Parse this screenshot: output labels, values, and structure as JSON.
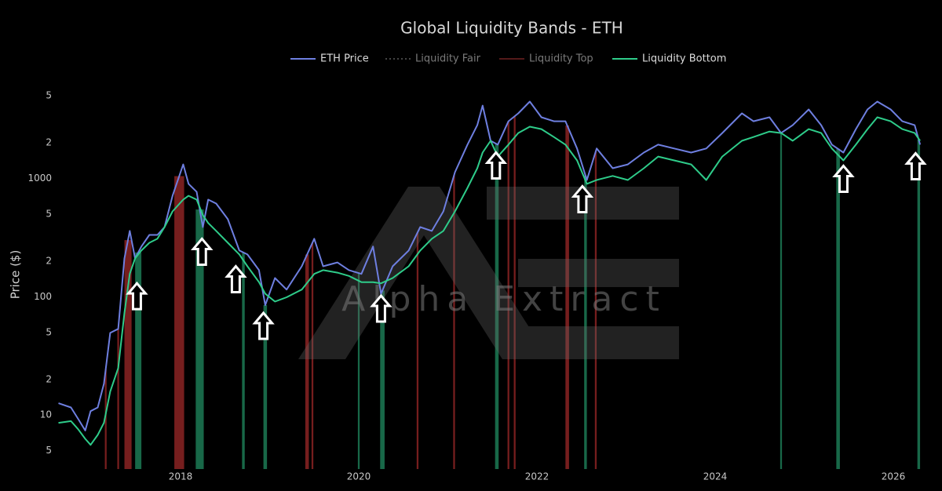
{
  "chart_data": {
    "type": "line",
    "title": "Global Liquidity Bands - ETH",
    "y_label": "Price ($)",
    "watermark": "Alpha Extract",
    "log_y": true,
    "xlim": [
      2016.59,
      2026.37
    ],
    "xticks": [
      2018,
      2020,
      2022,
      2024,
      2026
    ],
    "ylim": [
      3.5,
      7000
    ],
    "yticks": [
      {
        "value": 5000,
        "label": "5"
      },
      {
        "value": 2000,
        "label": "2"
      },
      1000,
      {
        "value": 500,
        "label": "5"
      },
      {
        "value": 200,
        "label": "2"
      },
      100,
      {
        "value": 50,
        "label": "5"
      },
      {
        "value": 20,
        "label": "2"
      },
      10,
      5
    ],
    "x": [
      2016.63,
      2016.77,
      2016.85,
      2016.93,
      2016.99,
      2017.07,
      2017.14,
      2017.21,
      2017.3,
      2017.37,
      2017.43,
      2017.49,
      2017.56,
      2017.65,
      2017.74,
      2017.82,
      2017.91,
      2018.03,
      2018.09,
      2018.18,
      2018.25,
      2018.31,
      2018.4,
      2018.53,
      2018.66,
      2018.75,
      2018.88,
      2018.95,
      2019.06,
      2019.19,
      2019.36,
      2019.5,
      2019.6,
      2019.76,
      2019.89,
      2020.03,
      2020.16,
      2020.25,
      2020.38,
      2020.56,
      2020.69,
      2020.82,
      2020.95,
      2021.08,
      2021.22,
      2021.33,
      2021.39,
      2021.48,
      2021.56,
      2021.68,
      2021.79,
      2021.92,
      2022.05,
      2022.19,
      2022.32,
      2022.45,
      2022.56,
      2022.67,
      2022.85,
      2023.02,
      2023.2,
      2023.36,
      2023.54,
      2023.73,
      2023.9,
      2024.08,
      2024.3,
      2024.43,
      2024.61,
      2024.74,
      2024.87,
      2025.05,
      2025.19,
      2025.31,
      2025.44,
      2025.58,
      2025.71,
      2025.82,
      2025.97,
      2026.1,
      2026.24,
      2026.3
    ],
    "series": [
      {
        "name": "ETH Price",
        "color": "#6e7fe0",
        "visible": true,
        "values": [
          12.6,
          11.6,
          9.3,
          7.4,
          10.8,
          11.6,
          18.4,
          49.5,
          53.5,
          211,
          360,
          211,
          266,
          333,
          333,
          388,
          714,
          1315,
          900,
          770,
          388,
          662,
          614,
          453,
          246,
          228,
          168,
          85,
          144,
          115,
          181,
          309,
          181,
          195,
          168,
          156,
          266,
          106,
          181,
          246,
          388,
          360,
          527,
          1130,
          1930,
          2820,
          4130,
          2080,
          1930,
          3040,
          3550,
          4460,
          3290,
          3040,
          3040,
          1790,
          970,
          1790,
          1220,
          1315,
          1655,
          1930,
          1790,
          1655,
          1790,
          2420,
          3550,
          3040,
          3290,
          2420,
          2820,
          3830,
          2820,
          1930,
          1655,
          2610,
          3830,
          4460,
          3830,
          3040,
          2820,
          1930
        ]
      },
      {
        "name": "Liquidity Fair",
        "color": "#8a8a8a",
        "dash": "dotted",
        "visible": false
      },
      {
        "name": "Liquidity Top",
        "color": "#a83232",
        "visible": false
      },
      {
        "name": "Liquidity Bottom",
        "color": "#2ecc8a",
        "visible": true,
        "values": [
          8.6,
          8.9,
          7.6,
          6.3,
          5.6,
          6.8,
          8.6,
          15.8,
          25,
          73,
          156,
          211,
          246,
          286,
          309,
          388,
          527,
          662,
          714,
          662,
          490,
          420,
          360,
          286,
          228,
          181,
          133,
          106,
          91,
          99,
          115,
          156,
          168,
          160,
          150,
          133,
          133,
          130,
          144,
          181,
          246,
          309,
          360,
          527,
          833,
          1220,
          1655,
          2080,
          1530,
          1930,
          2420,
          2740,
          2610,
          2240,
          1930,
          1420,
          900,
          970,
          1050,
          970,
          1220,
          1530,
          1420,
          1315,
          970,
          1530,
          2080,
          2240,
          2490,
          2420,
          2080,
          2610,
          2420,
          1790,
          1420,
          1930,
          2610,
          3290,
          3040,
          2610,
          2420,
          2080
        ]
      }
    ],
    "top_band_color": "#8b2323",
    "bottom_band_color": "#1c7a55",
    "top_bands": [
      [
        2017.15,
        2017.17
      ],
      [
        2017.29,
        2017.31
      ],
      [
        2017.37,
        2017.45
      ],
      [
        2017.93,
        2018.04
      ],
      [
        2019.4,
        2019.44
      ],
      [
        2019.47,
        2019.49
      ],
      [
        2020.65,
        2020.67
      ],
      [
        2021.06,
        2021.08
      ],
      [
        2021.67,
        2021.69
      ],
      [
        2021.74,
        2021.76
      ],
      [
        2022.32,
        2022.36
      ],
      [
        2022.65,
        2022.67
      ]
    ],
    "bottom_bands": [
      [
        2017.49,
        2017.56
      ],
      [
        2018.17,
        2018.26
      ],
      [
        2018.69,
        2018.72
      ],
      [
        2018.93,
        2018.97
      ],
      [
        2019.99,
        2020.01
      ],
      [
        2020.24,
        2020.29
      ],
      [
        2021.53,
        2021.57
      ],
      [
        2022.53,
        2022.56
      ],
      [
        2024.73,
        2024.75
      ],
      [
        2025.36,
        2025.4
      ],
      [
        2026.27,
        2026.3
      ]
    ],
    "arrows": [
      {
        "x": 2017.51,
        "y": 130
      },
      {
        "x": 2018.24,
        "y": 309
      },
      {
        "x": 2018.62,
        "y": 181
      },
      {
        "x": 2018.93,
        "y": 73
      },
      {
        "x": 2020.25,
        "y": 102
      },
      {
        "x": 2021.54,
        "y": 1655
      },
      {
        "x": 2022.51,
        "y": 859
      },
      {
        "x": 2025.44,
        "y": 1277
      },
      {
        "x": 2026.25,
        "y": 1630
      }
    ]
  }
}
